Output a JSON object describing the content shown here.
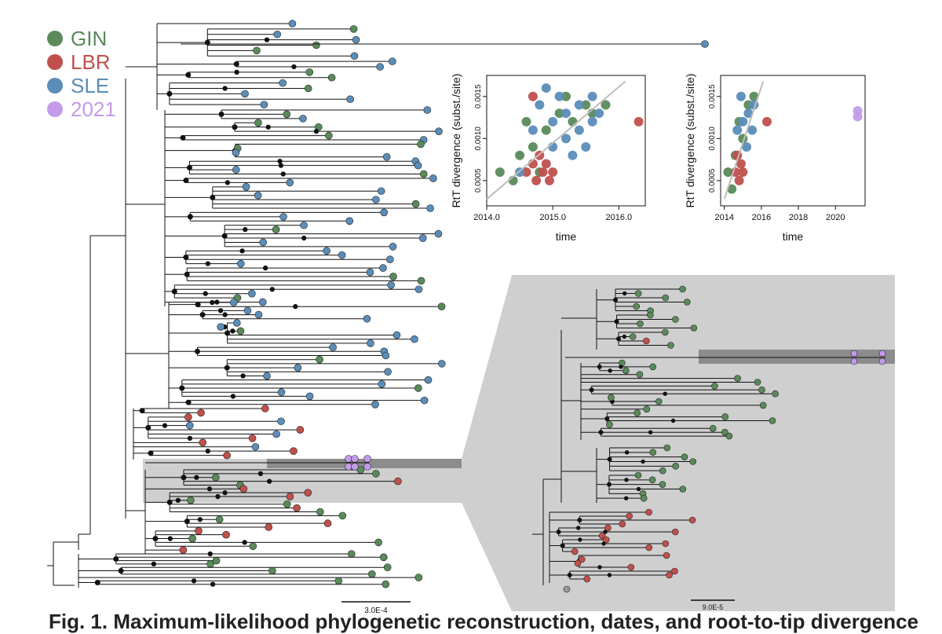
{
  "legend": [
    {
      "label": "GIN",
      "color": "#5a8a5a"
    },
    {
      "label": "LBR",
      "color": "#c0504d"
    },
    {
      "label": "SLE",
      "color": "#5b8db8"
    },
    {
      "label": "2021",
      "color": "#c39be8"
    }
  ],
  "colors": {
    "GIN": "#5a8a5a",
    "LBR": "#c0504d",
    "SLE": "#5b8db8",
    "y2021": "#c39be8",
    "gray": "#999999",
    "highlight_light": "#d0d0d0",
    "highlight_dark": "#8c8c8c"
  },
  "scale_bars": {
    "main": "3.0E-4",
    "inset": "9.0E-5"
  },
  "caption": "Fig. 1. Maximum-likelihood phylogenetic reconstruction, dates, and root-to-tip divergence",
  "chart_data": [
    {
      "type": "scatter",
      "title": "",
      "xlabel": "time",
      "ylabel": "RtT divergence (subst./site)",
      "xlim": [
        2014.0,
        2016.4
      ],
      "ylim": [
        0.0002,
        0.00175
      ],
      "xticks": [
        "2014.0",
        "2015.0",
        "2016.0"
      ],
      "xtick_values": [
        2014.0,
        2015.0,
        2016.0
      ],
      "yticks": [
        "0.0005",
        "0.0010",
        "0.0015"
      ],
      "ytick_values": [
        0.0005,
        0.001,
        0.0015
      ],
      "grid": false,
      "regression_line": [
        [
          2014.0,
          0.00028
        ],
        [
          2016.1,
          0.00168
        ]
      ],
      "series": [
        {
          "name": "GIN",
          "points": [
            [
              2014.2,
              0.0006
            ],
            [
              2014.4,
              0.0005
            ],
            [
              2014.5,
              0.0008
            ],
            [
              2014.6,
              0.0012
            ],
            [
              2014.7,
              0.0009
            ],
            [
              2014.8,
              0.0006
            ],
            [
              2014.9,
              0.0011
            ],
            [
              2015.1,
              0.0013
            ],
            [
              2015.2,
              0.0015
            ],
            [
              2015.3,
              0.0012
            ],
            [
              2015.5,
              0.0014
            ],
            [
              2015.6,
              0.0013
            ],
            [
              2015.8,
              0.0014
            ]
          ]
        },
        {
          "name": "LBR",
          "points": [
            [
              2014.6,
              0.0006
            ],
            [
              2014.7,
              0.0007
            ],
            [
              2014.75,
              0.0005
            ],
            [
              2014.8,
              0.0008
            ],
            [
              2014.85,
              0.0006
            ],
            [
              2014.9,
              0.0007
            ],
            [
              2014.95,
              0.0005
            ],
            [
              2015.0,
              0.0006
            ],
            [
              2014.7,
              0.0015
            ],
            [
              2016.3,
              0.0012
            ]
          ]
        },
        {
          "name": "SLE",
          "points": [
            [
              2014.5,
              0.0006
            ],
            [
              2014.7,
              0.0011
            ],
            [
              2014.8,
              0.0014
            ],
            [
              2014.9,
              0.0016
            ],
            [
              2015.0,
              0.0009
            ],
            [
              2015.0,
              0.0012
            ],
            [
              2015.1,
              0.0015
            ],
            [
              2015.2,
              0.001
            ],
            [
              2015.2,
              0.0013
            ],
            [
              2015.3,
              0.0008
            ],
            [
              2015.4,
              0.0011
            ],
            [
              2015.4,
              0.0014
            ],
            [
              2015.5,
              0.0009
            ],
            [
              2015.6,
              0.0012
            ],
            [
              2015.6,
              0.0015
            ],
            [
              2015.7,
              0.0013
            ]
          ]
        }
      ]
    },
    {
      "type": "scatter",
      "title": "",
      "xlabel": "time",
      "ylabel": "RtT divergence (subst./site)",
      "xlim": [
        2013.8,
        2021.6
      ],
      "ylim": [
        0.0002,
        0.00175
      ],
      "xticks": [
        "2014",
        "2016",
        "2018",
        "2020"
      ],
      "xtick_values": [
        2014,
        2016,
        2018,
        2020
      ],
      "yticks": [
        "0.0005",
        "0.0010",
        "0.0015"
      ],
      "ytick_values": [
        0.0005,
        0.001,
        0.0015
      ],
      "grid": false,
      "regression_line": [
        [
          2014.0,
          0.00028
        ],
        [
          2016.1,
          0.00168
        ]
      ],
      "series": [
        {
          "name": "GIN",
          "points": [
            [
              2014.2,
              0.0006
            ],
            [
              2014.4,
              0.0004
            ],
            [
              2014.6,
              0.0008
            ],
            [
              2014.8,
              0.0012
            ],
            [
              2015.0,
              0.001
            ],
            [
              2015.3,
              0.0014
            ],
            [
              2015.6,
              0.0015
            ]
          ]
        },
        {
          "name": "LBR",
          "points": [
            [
              2014.6,
              0.0006
            ],
            [
              2014.7,
              0.0008
            ],
            [
              2014.8,
              0.0005
            ],
            [
              2014.9,
              0.0007
            ],
            [
              2015.0,
              0.0006
            ],
            [
              2016.3,
              0.0012
            ]
          ]
        },
        {
          "name": "SLE",
          "points": [
            [
              2014.7,
              0.0011
            ],
            [
              2014.9,
              0.0015
            ],
            [
              2015.0,
              0.0012
            ],
            [
              2015.2,
              0.0009
            ],
            [
              2015.3,
              0.0013
            ],
            [
              2015.5,
              0.0011
            ],
            [
              2015.6,
              0.0014
            ]
          ]
        },
        {
          "name": "2021",
          "points": [
            [
              2021.2,
              0.00133
            ],
            [
              2021.2,
              0.00126
            ]
          ]
        }
      ]
    }
  ]
}
